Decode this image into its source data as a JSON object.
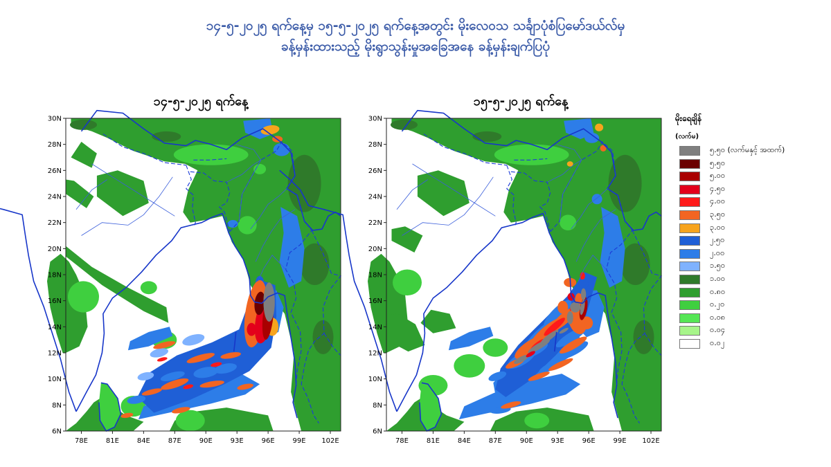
{
  "header": {
    "title_line1": "၁၄-၅-၂၀၂၅ ရက်နေ့မှ ၁၅-၅-၂၀၂၅ ရက်နေ့အတွင်း မိုးလေဝသ သင်္ချာပုံစံပြမော်ဒယ်လ်မှ",
    "title_line2": "ခန့်မှန်းထားသည့် မိုးရွာသွန်းမှုအခြေအနေ ခန့်မှန်းချက်ပြပုံ"
  },
  "maps": [
    {
      "title": "၁၄-၅-၂၀၂၅ ရက်နေ့"
    },
    {
      "title": "၁၅-၅-၂၀၂၅ ရက်နေ့"
    }
  ],
  "axes": {
    "lat_labels": [
      "30N",
      "28N",
      "26N",
      "24N",
      "22N",
      "20N",
      "18N",
      "16N",
      "14N",
      "12N",
      "10N",
      "8N",
      "6N"
    ],
    "lon_labels": [
      "78E",
      "81E",
      "84E",
      "87E",
      "90E",
      "93E",
      "96E",
      "99E",
      "102E"
    ],
    "lat_range": [
      6,
      30
    ],
    "lon_range": [
      76.5,
      103
    ]
  },
  "legend": {
    "title": "မိုးရေချိန်",
    "unit": "(လက်မ)",
    "items": [
      {
        "label": "၅.၅၀ (လက်မနှင့် အထက်)",
        "color": "#7f7f7f"
      },
      {
        "label": "၅.၅၀",
        "color": "#6b0000"
      },
      {
        "label": "၅.၀၀",
        "color": "#a90000"
      },
      {
        "label": "၄.၅၀",
        "color": "#e3001b"
      },
      {
        "label": "၄.၀၀",
        "color": "#ff1a1a"
      },
      {
        "label": "၃.၅၀",
        "color": "#f26522"
      },
      {
        "label": "၃.၀၀",
        "color": "#f7a41d"
      },
      {
        "label": "၂.၅၀",
        "color": "#1f5fd6"
      },
      {
        "label": "၂.၀၀",
        "color": "#2d7de8"
      },
      {
        "label": "၁.၅၀",
        "color": "#7fb2ff"
      },
      {
        "label": "၁.၀၀",
        "color": "#2f7a2a"
      },
      {
        "label": "၀.၈၀",
        "color": "#2f9e2f"
      },
      {
        "label": "၀.၂၀",
        "color": "#3fcf3f"
      },
      {
        "label": "၀.၀၈",
        "color": "#55e655"
      },
      {
        "label": "၀.၀၄",
        "color": "#a7f58a"
      },
      {
        "label": "၀.၀၂",
        "color": "#ffffff"
      }
    ]
  }
}
